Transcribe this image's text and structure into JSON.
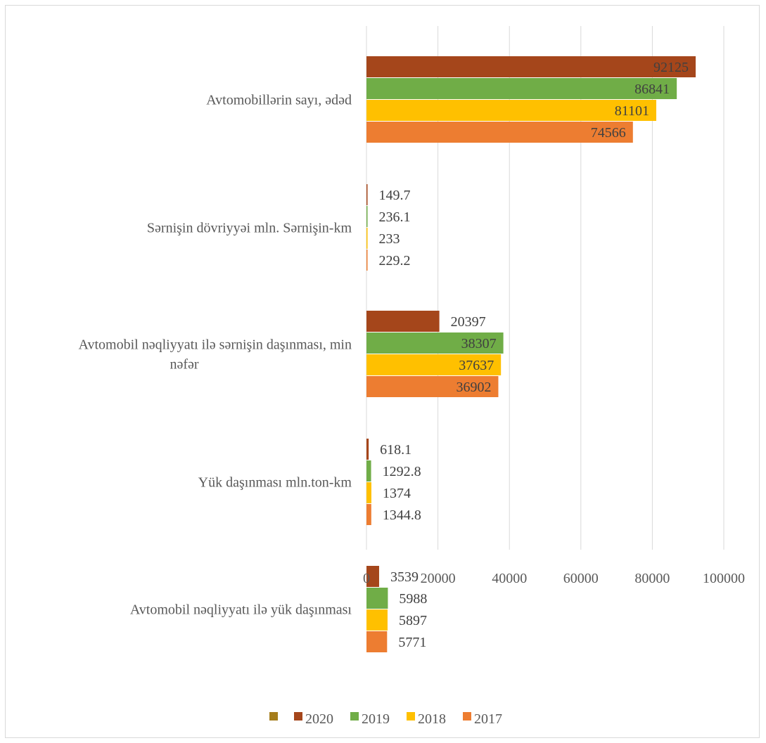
{
  "chart_data": {
    "type": "bar",
    "orientation": "horizontal",
    "categories": [
      "Avtomobillərin sayı, ədəd",
      "Sərnişin dövriyyəi mln. Sərnişin-km",
      "Avtomobil nəqliyyatı ilə sərnişin daşınması, min nəfər",
      "Yük daşınması mln.ton-km",
      "Avtomobil nəqliyyatı ilə yük daşınması"
    ],
    "category_lines": [
      [
        "Avtomobillərin sayı, ədəd"
      ],
      [
        "Sərnişin dövriyyəi mln. Sərnişin-km"
      ],
      [
        "Avtomobil nəqliyyatı ilə sərnişin daşınması, min",
        "nəfər"
      ],
      [
        "Yük daşınması mln.ton-km"
      ],
      [
        "Avtomobil nəqliyyatı ilə yük daşınması"
      ]
    ],
    "series": [
      {
        "name": "2020",
        "color": "#A5461B",
        "values": [
          92125,
          149.7,
          20397,
          618.1,
          3539
        ],
        "labels": [
          "92125",
          "149.7",
          "20397",
          "618.1",
          "3539"
        ]
      },
      {
        "name": "2019",
        "color": "#70AD47",
        "values": [
          86841,
          236.1,
          38307,
          1292.8,
          5988
        ],
        "labels": [
          "86841",
          "236.1",
          "38307",
          "1292.8",
          "5988"
        ]
      },
      {
        "name": "2018",
        "color": "#FFC000",
        "values": [
          81101,
          233,
          37637,
          1374,
          5897
        ],
        "labels": [
          "81101",
          "233",
          "37637",
          "1374",
          "5897"
        ]
      },
      {
        "name": "2017",
        "color": "#ED7D31",
        "values": [
          74566,
          229.2,
          36902,
          1344.8,
          5771
        ],
        "labels": [
          "74566",
          "229.2",
          "36902",
          "1344.8",
          "5771"
        ]
      }
    ],
    "xlim": [
      0,
      100000
    ],
    "xticks": [
      "0",
      "20000",
      "40000",
      "60000",
      "80000",
      "100000"
    ],
    "xtick_values": [
      0,
      20000,
      40000,
      60000,
      80000,
      100000
    ],
    "grid": true,
    "legend_position": "bottom",
    "legend_extra_marker_color": "#A57D1B"
  }
}
